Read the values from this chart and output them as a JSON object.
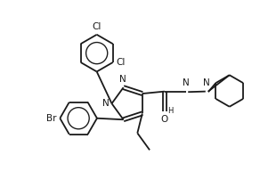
{
  "bg_color": "#ffffff",
  "line_color": "#1a1a1a",
  "line_width": 1.3,
  "font_size": 7.5,
  "figsize": [
    2.92,
    2.11
  ],
  "dpi": 100,
  "xlim": [
    0,
    9.5
  ],
  "ylim": [
    0,
    6.8
  ]
}
